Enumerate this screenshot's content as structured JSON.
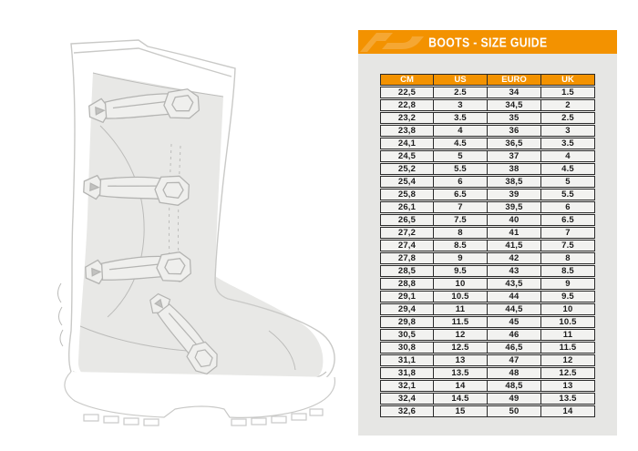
{
  "page": {
    "background": "#ffffff"
  },
  "boot_illustration": {
    "label": "motocross boot technical line drawing",
    "line_color": "#c9c9c7",
    "detail_line_color": "#bcbcba",
    "shade_color": "#e8e8e6"
  },
  "panel": {
    "background": "#e6e6e4",
    "accent_orange": "#f39200",
    "title": "BOOTS - SIZE GUIDE",
    "logo": "acerbis-logo-watermark"
  },
  "size_table": {
    "border_color": "#2b2b2b",
    "cell_background": "#f2f2f0",
    "cell_text_color": "#1d1d1d",
    "header_background": "#f39200",
    "header_text_color": "#ffffff",
    "headers": [
      "CM",
      "US",
      "EURO",
      "UK"
    ],
    "rows": [
      [
        "22,5",
        "2.5",
        "34",
        "1.5"
      ],
      [
        "22,8",
        "3",
        "34,5",
        "2"
      ],
      [
        "23,2",
        "3.5",
        "35",
        "2.5"
      ],
      [
        "23,8",
        "4",
        "36",
        "3"
      ],
      [
        "24,1",
        "4.5",
        "36,5",
        "3.5"
      ],
      [
        "24,5",
        "5",
        "37",
        "4"
      ],
      [
        "25,2",
        "5.5",
        "38",
        "4.5"
      ],
      [
        "25,4",
        "6",
        "38,5",
        "5"
      ],
      [
        "25,8",
        "6.5",
        "39",
        "5.5"
      ],
      [
        "26,1",
        "7",
        "39,5",
        "6"
      ],
      [
        "26,5",
        "7.5",
        "40",
        "6.5"
      ],
      [
        "27,2",
        "8",
        "41",
        "7"
      ],
      [
        "27,4",
        "8.5",
        "41,5",
        "7.5"
      ],
      [
        "27,8",
        "9",
        "42",
        "8"
      ],
      [
        "28,5",
        "9.5",
        "43",
        "8.5"
      ],
      [
        "28,8",
        "10",
        "43,5",
        "9"
      ],
      [
        "29,1",
        "10.5",
        "44",
        "9.5"
      ],
      [
        "29,4",
        "11",
        "44,5",
        "10"
      ],
      [
        "29,8",
        "11.5",
        "45",
        "10.5"
      ],
      [
        "30,5",
        "12",
        "46",
        "11"
      ],
      [
        "30,8",
        "12.5",
        "46,5",
        "11.5"
      ],
      [
        "31,1",
        "13",
        "47",
        "12"
      ],
      [
        "31,8",
        "13.5",
        "48",
        "12.5"
      ],
      [
        "32,1",
        "14",
        "48,5",
        "13"
      ],
      [
        "32,4",
        "14.5",
        "49",
        "13.5"
      ],
      [
        "32,6",
        "15",
        "50",
        "14"
      ]
    ]
  }
}
